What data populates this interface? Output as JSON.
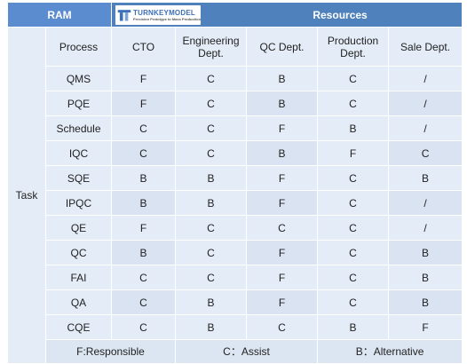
{
  "header": {
    "ram_label": "RAM",
    "resources_label": "Resources",
    "logo": {
      "name": "TURNKEYMODEL",
      "tagline": "Precision Prototype to Mass Production"
    }
  },
  "task_label": "Task",
  "columns": [
    "Process",
    "CTO",
    "Engineering Dept.",
    "QC Dept.",
    "Production Dept.",
    "Sale Dept."
  ],
  "rows": [
    {
      "process": "QMS",
      "cto": "F",
      "engineering": "C",
      "qc": "B",
      "production": "C",
      "sale": "/"
    },
    {
      "process": "PQE",
      "cto": "F",
      "engineering": "C",
      "qc": "B",
      "production": "C",
      "sale": "/"
    },
    {
      "process": "Schedule",
      "cto": "C",
      "engineering": "C",
      "qc": "F",
      "production": "B",
      "sale": "/"
    },
    {
      "process": "IQC",
      "cto": "C",
      "engineering": "C",
      "qc": "B",
      "production": "F",
      "sale": "C"
    },
    {
      "process": "SQE",
      "cto": "B",
      "engineering": "B",
      "qc": "F",
      "production": "C",
      "sale": "B"
    },
    {
      "process": "IPQC",
      "cto": "B",
      "engineering": "B",
      "qc": "F",
      "production": "C",
      "sale": "/"
    },
    {
      "process": "QE",
      "cto": "F",
      "engineering": "C",
      "qc": "C",
      "production": "C",
      "sale": "/"
    },
    {
      "process": "QC",
      "cto": "B",
      "engineering": "C",
      "qc": "F",
      "production": "C",
      "sale": "B"
    },
    {
      "process": "FAI",
      "cto": "C",
      "engineering": "C",
      "qc": "F",
      "production": "C",
      "sale": "B"
    },
    {
      "process": "QA",
      "cto": "C",
      "engineering": "B",
      "qc": "F",
      "production": "C",
      "sale": "B"
    },
    {
      "process": "CQE",
      "cto": "C",
      "engineering": "B",
      "qc": "C",
      "production": "B",
      "sale": "F"
    }
  ],
  "legend": {
    "responsible": "F:Responsible",
    "assist": "C：Assist",
    "alternative": "B：Alternative"
  },
  "colors": {
    "header_bg": "#4f81bd",
    "cell_bg": "#e4ecf7",
    "cell_alt_bg": "#d9e3f1",
    "logo_blue": "#3b6fb6"
  }
}
